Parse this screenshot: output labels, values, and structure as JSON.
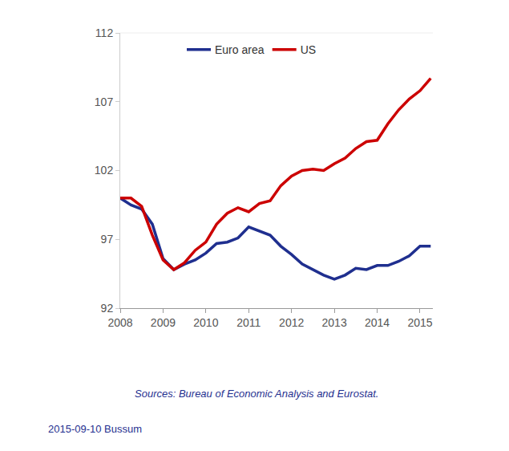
{
  "chart_data": {
    "type": "line",
    "x": [
      2008,
      2008.25,
      2008.5,
      2008.75,
      2009,
      2009.25,
      2009.5,
      2009.75,
      2010,
      2010.25,
      2010.5,
      2010.75,
      2011,
      2011.25,
      2011.5,
      2011.75,
      2012,
      2012.25,
      2012.5,
      2012.75,
      2013,
      2013.25,
      2013.5,
      2013.75,
      2014,
      2014.25,
      2014.5,
      2014.75,
      2015,
      2015.25
    ],
    "series": [
      {
        "name": "Euro area",
        "color": "#1f2f8f",
        "values": [
          100,
          99.5,
          99.2,
          98.1,
          95.6,
          94.8,
          95.2,
          95.5,
          96.0,
          96.7,
          96.8,
          97.1,
          97.9,
          97.6,
          97.3,
          96.5,
          95.9,
          95.2,
          94.8,
          94.4,
          94.1,
          94.4,
          94.9,
          94.8,
          95.1,
          95.1,
          95.4,
          95.8,
          96.5,
          96.5
        ]
      },
      {
        "name": "US",
        "color": "#cc0000",
        "values": [
          100,
          100,
          99.4,
          97.3,
          95.5,
          94.8,
          95.3,
          96.2,
          96.8,
          98.1,
          98.9,
          99.3,
          99.0,
          99.6,
          99.8,
          100.9,
          101.6,
          102.0,
          102.1,
          102.0,
          102.5,
          102.9,
          103.6,
          104.1,
          104.2,
          105.4,
          106.4,
          107.2,
          107.8,
          108.7
        ]
      }
    ],
    "xlim": [
      2008,
      2015.3
    ],
    "xticks": [
      2008,
      2009,
      2010,
      2011,
      2012,
      2013,
      2014,
      2015
    ],
    "ylim": [
      92,
      112
    ],
    "yticks": [
      92,
      97,
      102,
      107,
      112
    ],
    "y2lim": [
      92,
      112
    ],
    "y2ticks": [
      92,
      97,
      102,
      107,
      112
    ],
    "grid": false,
    "legend": "top",
    "annotations": [
      "Sources: Bureau of Economic Analysis and Eurostat.",
      "2015-09-10 Bussum"
    ]
  }
}
